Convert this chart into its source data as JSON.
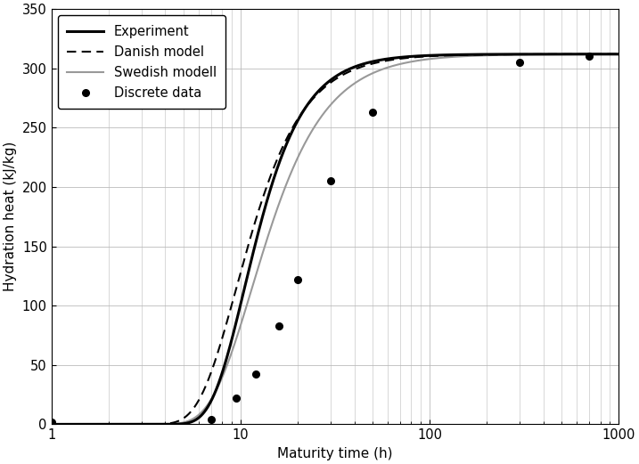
{
  "title": "",
  "xlabel": "Maturity time (h)",
  "ylabel": "Hydration heat (kJ/kg)",
  "xlim": [
    1,
    1000
  ],
  "ylim": [
    0,
    350
  ],
  "yticks": [
    0,
    50,
    100,
    150,
    200,
    250,
    300,
    350
  ],
  "background_color": "#ffffff",
  "grid_color": "#bbbbbb",
  "experiment_color": "#000000",
  "danish_color": "#000000",
  "swedish_color": "#999999",
  "discrete_color": "#000000",
  "legend_labels": [
    "Experiment",
    "Danish model",
    "Swedish modell",
    "Discrete data"
  ],
  "discrete_x": [
    1.0,
    7.0,
    9.5,
    12.0,
    16.0,
    20.0,
    30.0,
    50.0,
    300.0,
    700.0
  ],
  "discrete_y": [
    2.0,
    4.0,
    22.0,
    42.0,
    83.0,
    122.0,
    205.0,
    263.0,
    305.0,
    310.0
  ],
  "Q_inf": 312.0,
  "tau_exp": 10.5,
  "beta_exp": 2.5,
  "tau_dan": 9.5,
  "beta_dan": 2.2,
  "tau_swe": 11.5,
  "beta_swe": 2.0
}
